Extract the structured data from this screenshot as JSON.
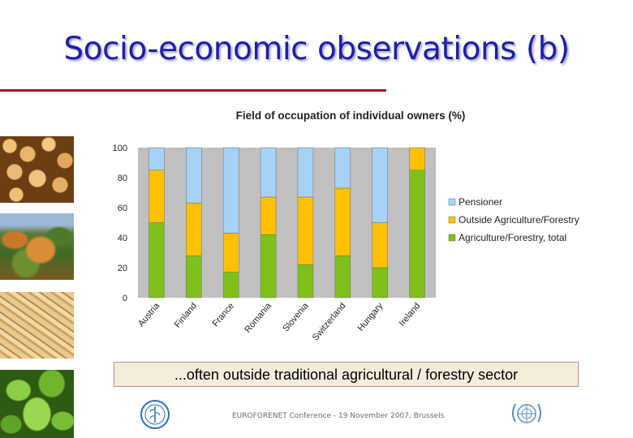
{
  "slide": {
    "title": "Socio-economic observations (b)",
    "caption": "...often outside traditional agricultural / forestry sector",
    "footer": "EUROFORENET Conference - 19 November 2007, Brussels"
  },
  "colors": {
    "title": "#1f1fa8",
    "rule": "#a8112a",
    "pensioner": "#a5d2f5",
    "outside": "#ffc000",
    "agriculture": "#7dc11a"
  },
  "icons": [
    "fao-logo-icon",
    "un-emblem-icon"
  ],
  "chart_data": {
    "type": "bar",
    "stacked": true,
    "title": "Field of occupation of individual owners (%)",
    "categories": [
      "Austria",
      "Finland",
      "France",
      "Romania",
      "Slovenia",
      "Switzerland",
      "Hungary",
      "Ireland"
    ],
    "series": [
      {
        "name": "Agriculture/Forestry, total",
        "values": [
          50,
          28,
          17,
          42,
          22,
          28,
          20,
          85
        ]
      },
      {
        "name": "Outside Agriculture/Forestry",
        "values": [
          35,
          35,
          26,
          25,
          45,
          45,
          30,
          15
        ]
      },
      {
        "name": "Pensioner",
        "values": [
          15,
          37,
          57,
          33,
          33,
          27,
          50,
          0
        ]
      }
    ],
    "legend_order": [
      "Pensioner",
      "Outside Agriculture/Forestry",
      "Agriculture/Forestry, total"
    ],
    "ylim": [
      0,
      100
    ],
    "yticks": [
      0,
      20,
      40,
      60,
      80,
      100
    ],
    "grid": false,
    "legend_position": "right"
  }
}
